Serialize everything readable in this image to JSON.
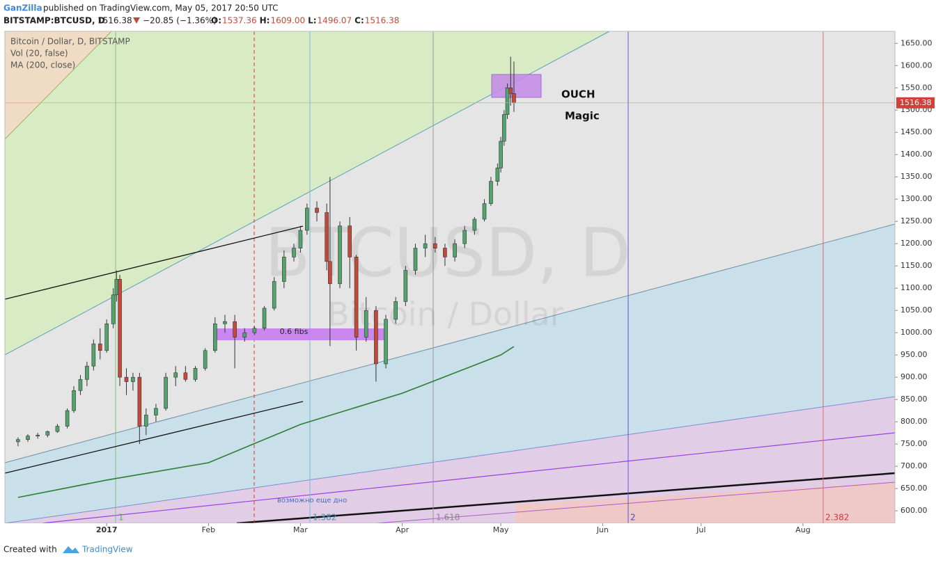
{
  "header": {
    "author": "GanZilla",
    "published": "published on TradingView.com, May 05, 2017 20:50 UTC",
    "symbol": "BITSTAMP:BTCUSD, D",
    "price": "1516.38",
    "change": "−20.85 (−1.36%)",
    "ohlc": [
      {
        "label": "O:",
        "value": "1537.36"
      },
      {
        "label": "H:",
        "value": "1609.00"
      },
      {
        "label": "L:",
        "value": "1496.07"
      },
      {
        "label": "C:",
        "value": "1516.38"
      }
    ]
  },
  "chart_data": {
    "type": "candlestick",
    "title": "Bitcoin / Dollar, D, BITSTAMP",
    "volume_label": "Vol (20, false)",
    "watermark": "BTCUSD, D",
    "watermark_sub": "Bitcoin / Dollar",
    "up_color": "#53a36f",
    "down_color": "#c5493a",
    "x": [
      "2016-12-05",
      "2016-12-08",
      "2016-12-11",
      "2016-12-14",
      "2016-12-17",
      "2016-12-20",
      "2016-12-22",
      "2016-12-24",
      "2016-12-26",
      "2016-12-28",
      "2016-12-30",
      "2017-01-01",
      "2017-01-03",
      "2017-01-04",
      "2017-01-05",
      "2017-01-07",
      "2017-01-09",
      "2017-01-11",
      "2017-01-13",
      "2017-01-16",
      "2017-01-19",
      "2017-01-22",
      "2017-01-25",
      "2017-01-28",
      "2017-01-31",
      "2017-02-03",
      "2017-02-06",
      "2017-02-09",
      "2017-02-12",
      "2017-02-15",
      "2017-02-18",
      "2017-02-21",
      "2017-02-24",
      "2017-02-27",
      "2017-03-01",
      "2017-03-03",
      "2017-03-06",
      "2017-03-09",
      "2017-03-10",
      "2017-03-13",
      "2017-03-16",
      "2017-03-18",
      "2017-03-21",
      "2017-03-24",
      "2017-03-27",
      "2017-03-30",
      "2017-04-02",
      "2017-04-05",
      "2017-04-08",
      "2017-04-11",
      "2017-04-14",
      "2017-04-17",
      "2017-04-20",
      "2017-04-23",
      "2017-04-26",
      "2017-04-28",
      "2017-04-30",
      "2017-05-01",
      "2017-05-02",
      "2017-05-03",
      "2017-05-04",
      "2017-05-05"
    ],
    "open": [
      755,
      760,
      768,
      770,
      778,
      790,
      825,
      870,
      895,
      925,
      975,
      960,
      1020,
      1085,
      1120,
      900,
      890,
      900,
      790,
      815,
      830,
      900,
      910,
      895,
      920,
      960,
      1020,
      1025,
      990,
      1000,
      1010,
      1055,
      1115,
      1170,
      1190,
      1230,
      1280,
      1270,
      1160,
      1110,
      1240,
      1170,
      990,
      1050,
      930,
      1030,
      1070,
      1140,
      1190,
      1200,
      1190,
      1170,
      1200,
      1230,
      1255,
      1290,
      1340,
      1370,
      1430,
      1490,
      1550,
      1537.36
    ],
    "high": [
      765,
      772,
      775,
      780,
      795,
      830,
      880,
      905,
      935,
      985,
      1010,
      1030,
      1100,
      1140,
      1130,
      920,
      910,
      910,
      830,
      840,
      910,
      925,
      925,
      925,
      965,
      1035,
      1040,
      1040,
      1010,
      1015,
      1060,
      1125,
      1185,
      1200,
      1240,
      1290,
      1295,
      1290,
      1350,
      1250,
      1260,
      1175,
      1080,
      1060,
      1040,
      1080,
      1150,
      1200,
      1220,
      1215,
      1200,
      1210,
      1240,
      1260,
      1300,
      1350,
      1380,
      1440,
      1500,
      1560,
      1620,
      1609
    ],
    "low": [
      745,
      755,
      762,
      765,
      775,
      785,
      820,
      860,
      880,
      915,
      940,
      955,
      1010,
      1070,
      880,
      860,
      870,
      750,
      770,
      800,
      825,
      880,
      890,
      890,
      915,
      955,
      1000,
      920,
      980,
      995,
      1005,
      1050,
      1100,
      1160,
      1180,
      1220,
      1250,
      1140,
      970,
      1100,
      1100,
      960,
      980,
      890,
      920,
      1020,
      1060,
      1130,
      1170,
      1180,
      1150,
      1160,
      1190,
      1220,
      1250,
      1285,
      1330,
      1360,
      1420,
      1480,
      1510,
      1496.07
    ],
    "close": [
      760,
      768,
      770,
      778,
      790,
      825,
      870,
      895,
      925,
      975,
      960,
      1020,
      1085,
      1120,
      900,
      890,
      900,
      790,
      815,
      830,
      900,
      910,
      895,
      920,
      960,
      1020,
      1025,
      990,
      1000,
      1010,
      1055,
      1115,
      1170,
      1190,
      1230,
      1280,
      1270,
      1160,
      1110,
      1240,
      1170,
      990,
      1050,
      930,
      1030,
      1070,
      1140,
      1190,
      1200,
      1190,
      1170,
      1200,
      1230,
      1255,
      1290,
      1340,
      1370,
      1430,
      1490,
      1550,
      1537.36,
      1516.38
    ],
    "ma": {
      "name": "MA (200, close)",
      "color": "#2e7d32",
      "x": [
        "2016-12-05",
        "2017-01-01",
        "2017-02-01",
        "2017-03-01",
        "2017-04-01",
        "2017-05-01",
        "2017-05-05"
      ],
      "values": [
        630,
        669,
        708,
        794,
        864,
        950,
        969
      ]
    },
    "xlim": [
      "2016-12-01",
      "2017-08-29"
    ],
    "xticks": [
      {
        "value": "2017-01-01",
        "label": "2017"
      },
      {
        "value": "2017-02-01",
        "label": "Feb"
      },
      {
        "value": "2017-03-01",
        "label": "Mar"
      },
      {
        "value": "2017-04-01",
        "label": "Apr"
      },
      {
        "value": "2017-05-01",
        "label": "May"
      },
      {
        "value": "2017-06-01",
        "label": "Jun"
      },
      {
        "value": "2017-07-01",
        "label": "Jul"
      },
      {
        "value": "2017-08-01",
        "label": "Aug"
      }
    ],
    "ylim": [
      572,
      1677
    ],
    "yticks": [
      {
        "value": 600,
        "label": "600.00"
      },
      {
        "value": 650,
        "label": "650.00"
      },
      {
        "value": 700,
        "label": "700.00"
      },
      {
        "value": 750,
        "label": "750.00"
      },
      {
        "value": 800,
        "label": "800.00"
      },
      {
        "value": 850,
        "label": "850.00"
      },
      {
        "value": 900,
        "label": "900.00"
      },
      {
        "value": 950,
        "label": "950.00"
      },
      {
        "value": 1000,
        "label": "1000.00"
      },
      {
        "value": 1050,
        "label": "1050.00"
      },
      {
        "value": 1100,
        "label": "1100.00"
      },
      {
        "value": 1150,
        "label": "1150.00"
      },
      {
        "value": 1200,
        "label": "1200.00"
      },
      {
        "value": 1250,
        "label": "1250.00"
      },
      {
        "value": 1300,
        "label": "1300.00"
      },
      {
        "value": 1350,
        "label": "1350.00"
      },
      {
        "value": 1400,
        "label": "1400.00"
      },
      {
        "value": 1450,
        "label": "1450.00"
      },
      {
        "value": 1500,
        "label": "1500.00"
      },
      {
        "value": 1550,
        "label": "1550.00"
      },
      {
        "value": 1600,
        "label": "1600.00"
      },
      {
        "value": 1650,
        "label": "1650.00"
      }
    ],
    "annotations": {
      "ouch": "OUCH",
      "magic": "Magic",
      "fibs": "0.6 fibs",
      "bottom": "возможно еще дно",
      "date_marker": "2017-02-15"
    },
    "fib_labels": [
      "1",
      "1.382",
      "1.618",
      "2",
      "2.382"
    ]
  },
  "footer": {
    "created": "Created with",
    "brand": "TradingView"
  }
}
